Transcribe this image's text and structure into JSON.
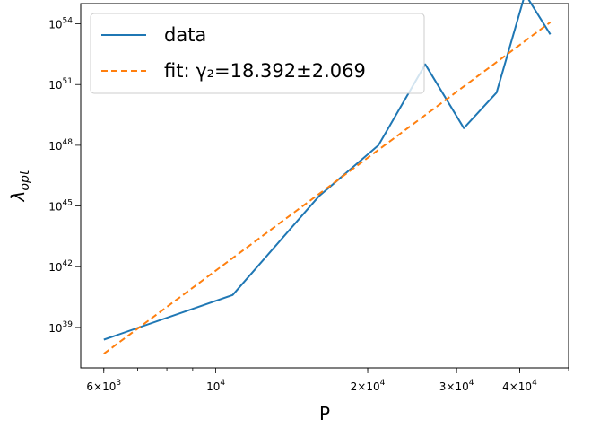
{
  "chart_data": {
    "type": "line",
    "xscale": "log",
    "yscale": "log",
    "xlabel": "P",
    "ylabel": "λ_opt",
    "xlim": [
      5400,
      50000
    ],
    "ylim": [
      1e+37,
      1e+55
    ],
    "grid": false,
    "legend_placement": "top-left",
    "x_ticks": [
      {
        "value": 6000,
        "base": "6",
        "exp": "3",
        "times": true
      },
      {
        "value": 10000,
        "base": "10",
        "exp": "4",
        "times": false
      },
      {
        "value": 20000,
        "base": "2",
        "exp": "4",
        "times": true
      },
      {
        "value": 30000,
        "base": "3",
        "exp": "4",
        "times": true
      },
      {
        "value": 40000,
        "base": "4",
        "exp": "4",
        "times": true
      }
    ],
    "y_ticks": [
      {
        "value": 1e+39,
        "base": "10",
        "exp": "39"
      },
      {
        "value": 1e+42,
        "base": "10",
        "exp": "42"
      },
      {
        "value": 1e+45,
        "base": "10",
        "exp": "45"
      },
      {
        "value": 1e+48,
        "base": "10",
        "exp": "48"
      },
      {
        "value": 1e+51,
        "base": "10",
        "exp": "51"
      },
      {
        "value": 1e+54,
        "base": "10",
        "exp": "54"
      }
    ],
    "series": [
      {
        "name": "data",
        "color": "#1f77b4",
        "style": "solid",
        "x": [
          6000,
          10800,
          16000,
          21000,
          26000,
          31000,
          36000,
          41000,
          46000
        ],
        "y": [
          2.5e+38,
          4e+40,
          3e+45,
          1e+48,
          1e+52,
          7e+48,
          4e+50,
          3e+55,
          3e+53
        ]
      },
      {
        "name": "fit: γ₂=18.392±2.069",
        "color": "#ff7f0e",
        "style": "dashed",
        "x": [
          6000,
          46000
        ],
        "y": [
          5e+37,
          1.2e+54
        ]
      }
    ]
  }
}
